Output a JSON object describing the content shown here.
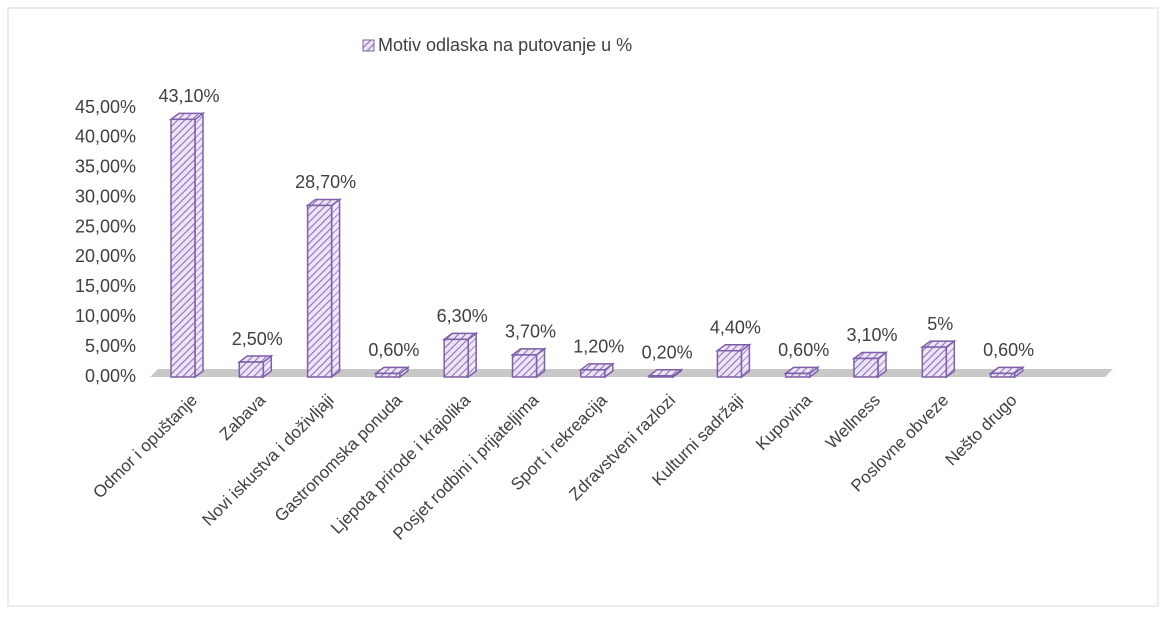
{
  "chart_data": {
    "type": "bar",
    "series": [
      {
        "name": "Motiv odlaska na putovanje u %",
        "color": "#7e5fa8",
        "values": [
          43.1,
          2.5,
          28.7,
          0.6,
          6.3,
          3.7,
          1.2,
          0.2,
          4.4,
          0.6,
          3.1,
          5,
          0.6
        ],
        "value_labels": [
          "43,10%",
          "2,50%",
          "28,70%",
          "0,60%",
          "6,30%",
          "3,70%",
          "1,20%",
          "0,20%",
          "4,40%",
          "0,60%",
          "3,10%",
          "5%",
          "0,60%"
        ]
      }
    ],
    "categories": [
      "Odmor i opuštanje",
      "Zabava",
      "Novi iskustva i doživljaji",
      "Gastronomska ponuda",
      "Ljepota prirode i krajolika",
      "Posjet rodbini i prijateljima",
      "Sport i rekreacija",
      "Zdravstveni razlozi",
      "Kulturni sadržaji",
      "Kupovina",
      "Wellness",
      "Poslovne obveze",
      "Nešto drugo"
    ],
    "ylim": [
      0,
      45
    ],
    "yticks": [
      {
        "value": 0,
        "label": "0,00%"
      },
      {
        "value": 5,
        "label": "5,00%"
      },
      {
        "value": 10,
        "label": "10,00%"
      },
      {
        "value": 15,
        "label": "15,00%"
      },
      {
        "value": 20,
        "label": "20,00%"
      },
      {
        "value": 25,
        "label": "25,00%"
      },
      {
        "value": 30,
        "label": "30,00%"
      },
      {
        "value": 35,
        "label": "35,00%"
      },
      {
        "value": 40,
        "label": "40,00%"
      },
      {
        "value": 45,
        "label": "45,00%"
      }
    ],
    "grid": false,
    "legend": "top"
  }
}
